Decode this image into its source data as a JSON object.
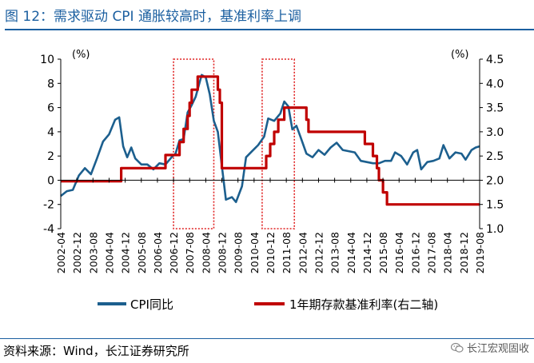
{
  "header": {
    "title": "图 12：需求驱动 CPI 通胀较高时，基准利率上调"
  },
  "footer": {
    "source": "资料来源：Wind，长江证券研究所",
    "watermark": "长江宏观固收"
  },
  "colors": {
    "cpi": "#1c5f8e",
    "rate": "#c00000",
    "highlight": "#e02020"
  },
  "chart_data": {
    "type": "line",
    "left_unit": "(%)",
    "right_unit": "(%)",
    "ylim_left": [
      -4,
      10
    ],
    "ylim_right": [
      1.0,
      4.5
    ],
    "yticks_left": [
      "10",
      "8",
      "6",
      "4",
      "2",
      "0",
      "-2",
      "-4"
    ],
    "yticks_right": [
      "4.5",
      "4.0",
      "3.5",
      "3.0",
      "2.5",
      "2.0",
      "1.5",
      "1.0"
    ],
    "x_ticks": [
      "2002-04",
      "2002-12",
      "2003-08",
      "2004-04",
      "2004-12",
      "2005-08",
      "2006-04",
      "2006-12",
      "2007-08",
      "2008-04",
      "2008-12",
      "2009-08",
      "2010-04",
      "2010-12",
      "2011-08",
      "2012-04",
      "2012-12",
      "2013-08",
      "2014-04",
      "2014-12",
      "2015-08",
      "2016-04",
      "2016-12",
      "2017-08",
      "2018-04",
      "2018-12",
      "2019-08"
    ],
    "series": [
      {
        "name": "CPI同比",
        "axis": "left",
        "points": [
          [
            "2002-04",
            -1.3
          ],
          [
            "2002-07",
            -0.9
          ],
          [
            "2002-10",
            -0.8
          ],
          [
            "2003-01",
            0.4
          ],
          [
            "2003-04",
            1.0
          ],
          [
            "2003-07",
            0.5
          ],
          [
            "2003-10",
            1.8
          ],
          [
            "2004-01",
            3.2
          ],
          [
            "2004-04",
            3.8
          ],
          [
            "2004-07",
            5.0
          ],
          [
            "2004-09",
            5.2
          ],
          [
            "2004-11",
            2.8
          ],
          [
            "2005-01",
            1.9
          ],
          [
            "2005-03",
            2.7
          ],
          [
            "2005-05",
            1.8
          ],
          [
            "2005-08",
            1.3
          ],
          [
            "2005-11",
            1.3
          ],
          [
            "2006-02",
            0.9
          ],
          [
            "2006-05",
            1.4
          ],
          [
            "2006-08",
            1.3
          ],
          [
            "2006-11",
            1.9
          ],
          [
            "2007-01",
            2.2
          ],
          [
            "2007-03",
            3.3
          ],
          [
            "2007-05",
            3.4
          ],
          [
            "2007-07",
            5.6
          ],
          [
            "2007-09",
            6.2
          ],
          [
            "2007-11",
            6.9
          ],
          [
            "2008-02",
            8.7
          ],
          [
            "2008-04",
            8.5
          ],
          [
            "2008-06",
            7.1
          ],
          [
            "2008-08",
            4.9
          ],
          [
            "2008-10",
            4.0
          ],
          [
            "2008-12",
            1.2
          ],
          [
            "2009-02",
            -1.6
          ],
          [
            "2009-05",
            -1.4
          ],
          [
            "2009-07",
            -1.8
          ],
          [
            "2009-10",
            -0.5
          ],
          [
            "2009-12",
            1.9
          ],
          [
            "2010-03",
            2.4
          ],
          [
            "2010-06",
            2.9
          ],
          [
            "2010-09",
            3.6
          ],
          [
            "2010-11",
            5.1
          ],
          [
            "2011-02",
            4.9
          ],
          [
            "2011-05",
            5.5
          ],
          [
            "2011-07",
            6.5
          ],
          [
            "2011-09",
            6.1
          ],
          [
            "2011-11",
            4.2
          ],
          [
            "2012-01",
            4.5
          ],
          [
            "2012-03",
            3.6
          ],
          [
            "2012-06",
            2.2
          ],
          [
            "2012-09",
            1.9
          ],
          [
            "2012-12",
            2.5
          ],
          [
            "2013-03",
            2.1
          ],
          [
            "2013-06",
            2.7
          ],
          [
            "2013-09",
            3.1
          ],
          [
            "2013-12",
            2.5
          ],
          [
            "2014-03",
            2.4
          ],
          [
            "2014-06",
            2.3
          ],
          [
            "2014-09",
            1.6
          ],
          [
            "2014-12",
            1.5
          ],
          [
            "2015-03",
            1.4
          ],
          [
            "2015-06",
            1.4
          ],
          [
            "2015-09",
            1.6
          ],
          [
            "2015-12",
            1.6
          ],
          [
            "2016-02",
            2.3
          ],
          [
            "2016-05",
            2.0
          ],
          [
            "2016-08",
            1.3
          ],
          [
            "2016-11",
            2.3
          ],
          [
            "2017-01",
            2.5
          ],
          [
            "2017-03",
            0.9
          ],
          [
            "2017-06",
            1.5
          ],
          [
            "2017-09",
            1.6
          ],
          [
            "2017-12",
            1.8
          ],
          [
            "2018-02",
            2.9
          ],
          [
            "2018-05",
            1.8
          ],
          [
            "2018-08",
            2.3
          ],
          [
            "2018-11",
            2.2
          ],
          [
            "2019-01",
            1.7
          ],
          [
            "2019-04",
            2.5
          ],
          [
            "2019-06",
            2.7
          ],
          [
            "2019-08",
            2.8
          ]
        ]
      },
      {
        "name": "1年期存款基准利率(右二轴)",
        "axis": "right",
        "points": [
          [
            "2002-04",
            1.98
          ],
          [
            "2004-10",
            1.98
          ],
          [
            "2004-10",
            2.25
          ],
          [
            "2006-08",
            2.25
          ],
          [
            "2006-08",
            2.52
          ],
          [
            "2007-03",
            2.52
          ],
          [
            "2007-03",
            2.79
          ],
          [
            "2007-05",
            2.79
          ],
          [
            "2007-05",
            3.06
          ],
          [
            "2007-07",
            3.06
          ],
          [
            "2007-07",
            3.33
          ],
          [
            "2007-08",
            3.33
          ],
          [
            "2007-08",
            3.6
          ],
          [
            "2007-09",
            3.6
          ],
          [
            "2007-09",
            3.87
          ],
          [
            "2007-12",
            3.87
          ],
          [
            "2007-12",
            4.14
          ],
          [
            "2008-10",
            4.14
          ],
          [
            "2008-10",
            3.87
          ],
          [
            "2008-11",
            3.87
          ],
          [
            "2008-11",
            3.6
          ],
          [
            "2008-12",
            3.6
          ],
          [
            "2008-12",
            2.25
          ],
          [
            "2010-10",
            2.25
          ],
          [
            "2010-10",
            2.5
          ],
          [
            "2010-12",
            2.5
          ],
          [
            "2010-12",
            2.75
          ],
          [
            "2011-02",
            2.75
          ],
          [
            "2011-02",
            3.0
          ],
          [
            "2011-04",
            3.0
          ],
          [
            "2011-04",
            3.25
          ],
          [
            "2011-07",
            3.25
          ],
          [
            "2011-07",
            3.5
          ],
          [
            "2012-06",
            3.5
          ],
          [
            "2012-06",
            3.25
          ],
          [
            "2012-07",
            3.25
          ],
          [
            "2012-07",
            3.0
          ],
          [
            "2014-11",
            3.0
          ],
          [
            "2014-11",
            2.75
          ],
          [
            "2015-03",
            2.75
          ],
          [
            "2015-03",
            2.5
          ],
          [
            "2015-05",
            2.5
          ],
          [
            "2015-05",
            2.25
          ],
          [
            "2015-06",
            2.25
          ],
          [
            "2015-06",
            2.0
          ],
          [
            "2015-08",
            2.0
          ],
          [
            "2015-08",
            1.75
          ],
          [
            "2015-10",
            1.75
          ],
          [
            "2015-10",
            1.5
          ],
          [
            "2019-08",
            1.5
          ]
        ]
      }
    ],
    "highlight_boxes": [
      [
        "2006-12",
        "2008-08"
      ],
      [
        "2010-08",
        "2011-12"
      ]
    ],
    "legend_position": "bottom"
  }
}
